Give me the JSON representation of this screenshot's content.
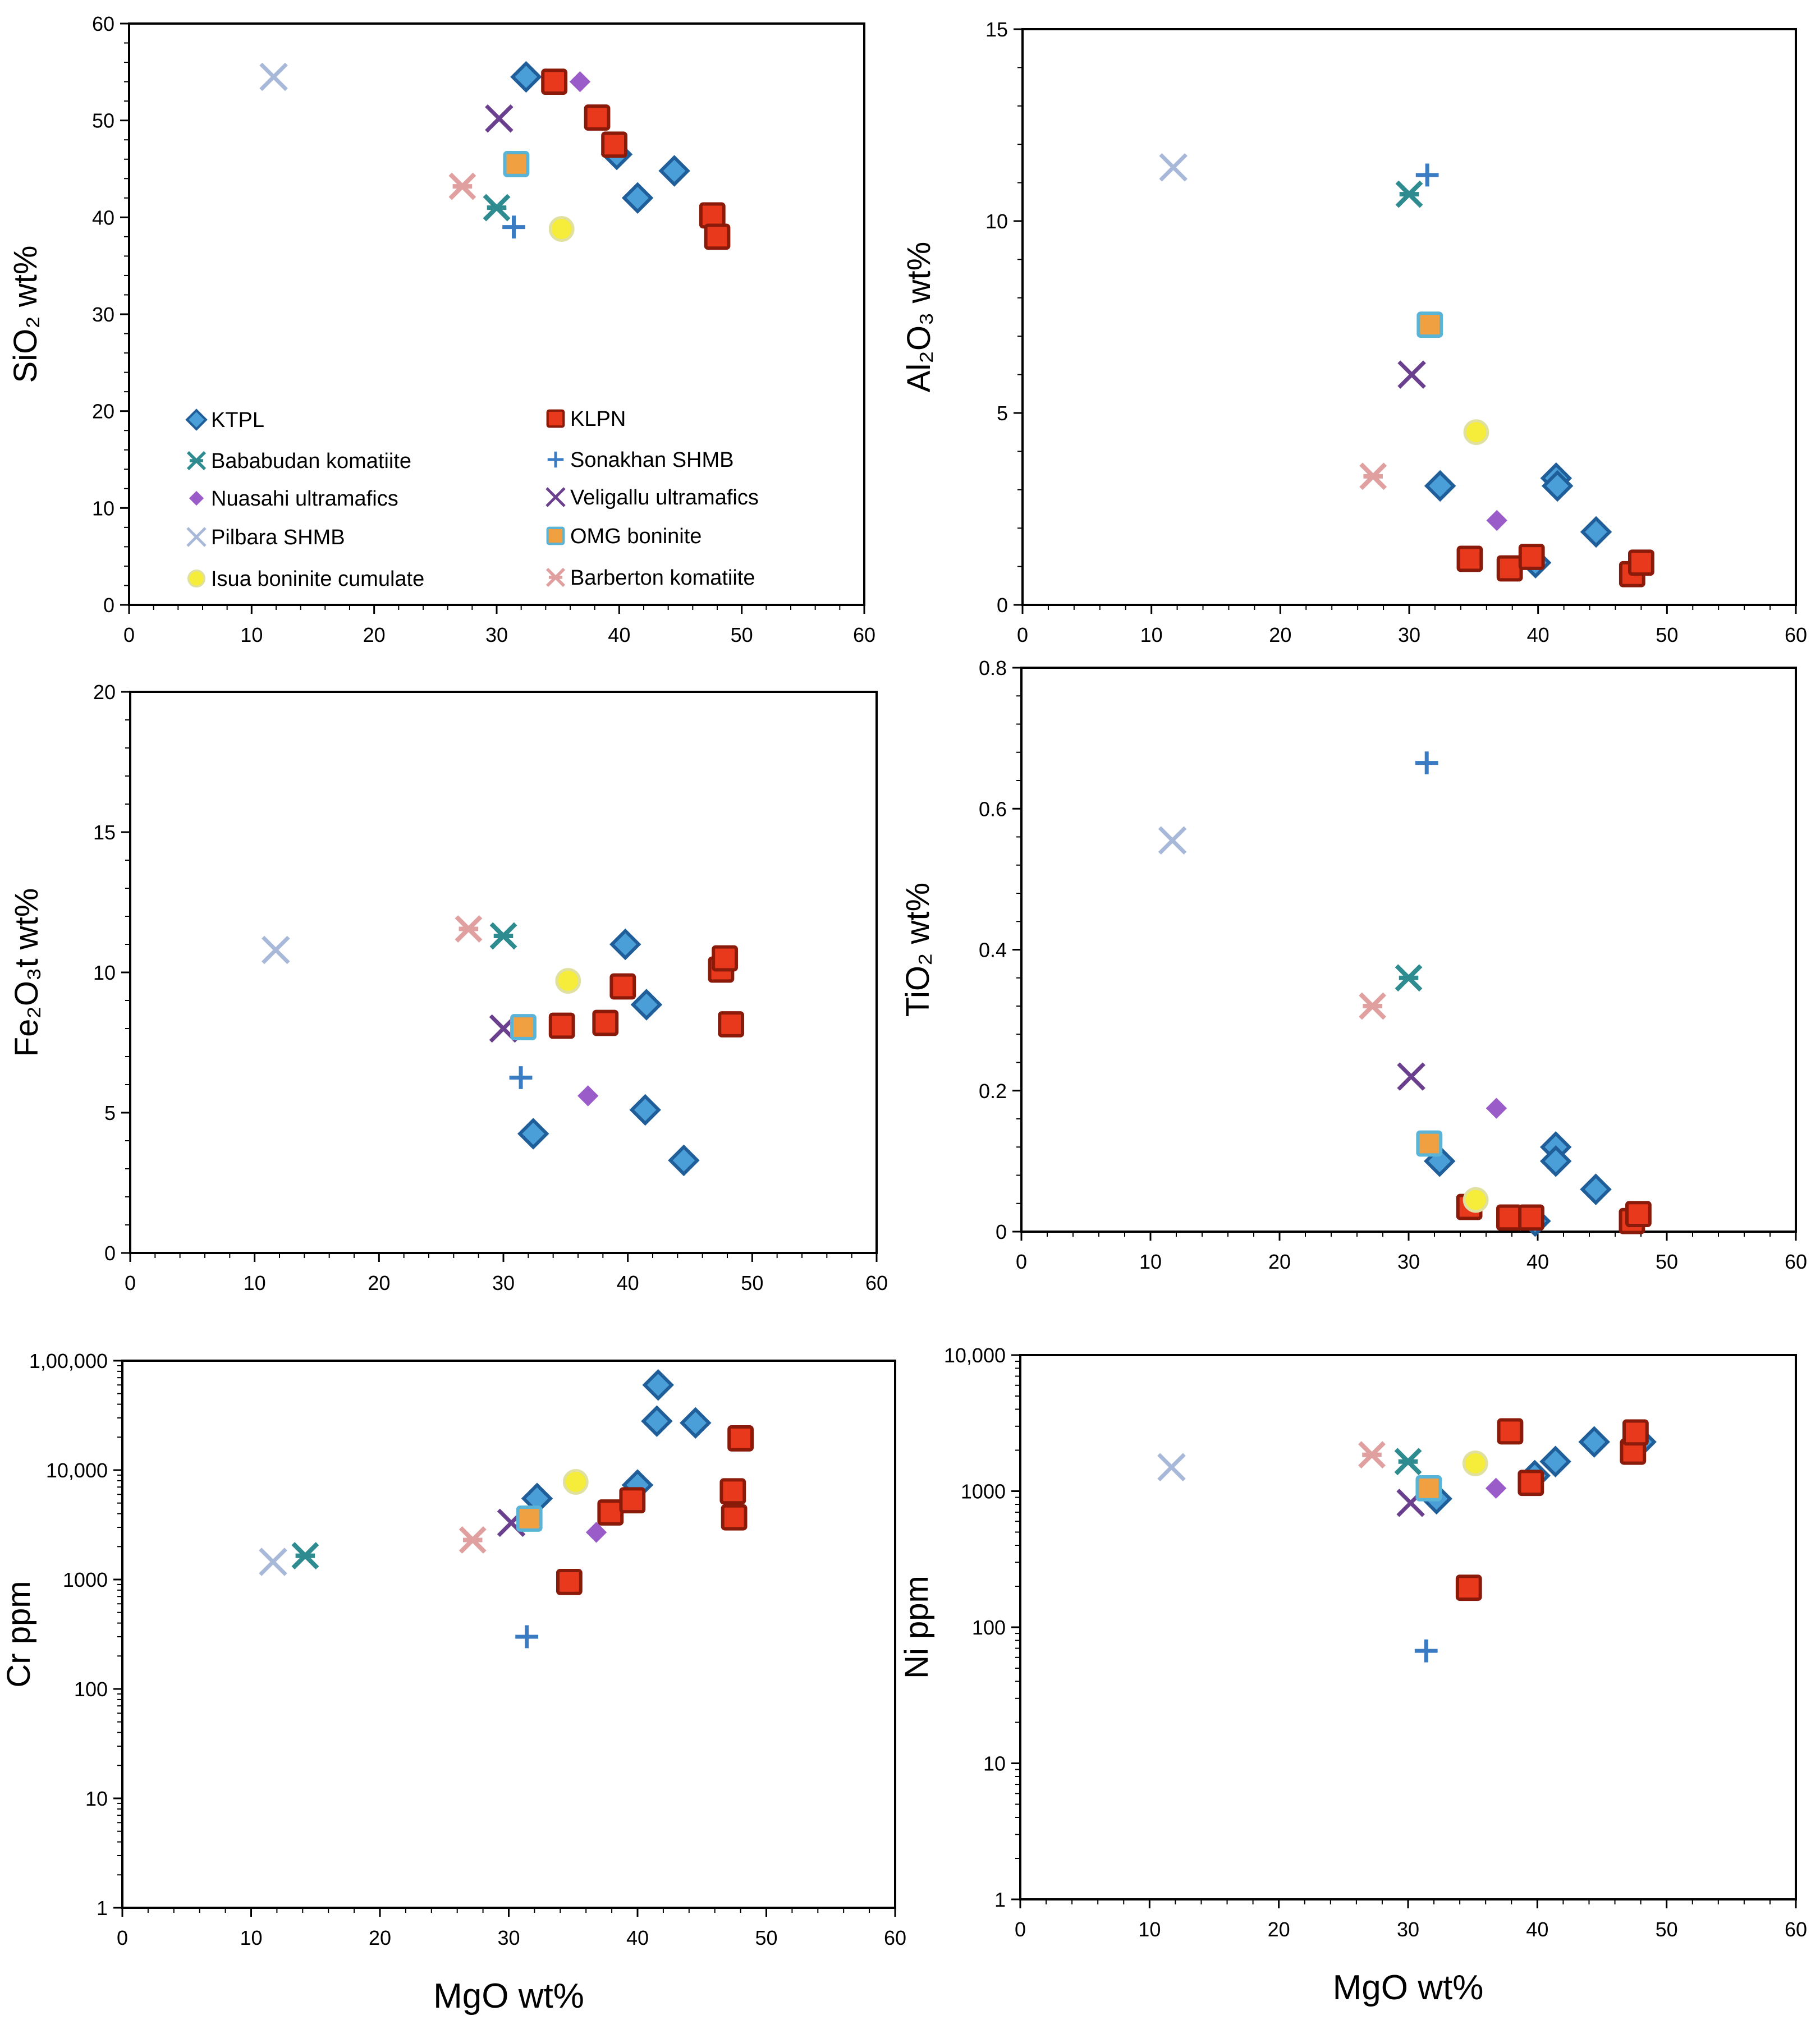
{
  "series_styles": {
    "KTPL": {
      "shape": "diamond",
      "color": "#4a9fd8",
      "stroke": "#1f5e99"
    },
    "KLPN": {
      "shape": "square",
      "color": "#e8391c",
      "stroke": "#8a1a0a"
    },
    "Bababudan komatiite": {
      "shape": "starx",
      "color": "#2e8b8f"
    },
    "Sonakhan SHMB": {
      "shape": "plus",
      "color": "#3a7cc4"
    },
    "Nuasahi ultramafics": {
      "shape": "smalldiamond",
      "color": "#9a5cc8"
    },
    "Veligallu ultramafics": {
      "shape": "x",
      "color": "#6a3f8e"
    },
    "Pilbara SHMB": {
      "shape": "x",
      "color": "#a8b8d8"
    },
    "OMG boninite": {
      "shape": "square",
      "color": "#f0a040",
      "stroke": "#5ab4d8"
    },
    "Isua boninite cumulate": {
      "shape": "circle",
      "color": "#f6ec3a",
      "stroke": "#e0e0a0"
    },
    "Barberton komatiite": {
      "shape": "starx",
      "color": "#e0a0a0"
    }
  },
  "chart_data": [
    {
      "id": "sio2",
      "type": "scatter",
      "xlabel": "",
      "ylabel": "SiO₂ wt%",
      "xlim": [
        0,
        60
      ],
      "ylim": [
        0,
        60
      ],
      "xticks": [
        "0",
        "10",
        "20",
        "30",
        "40",
        "50",
        "60"
      ],
      "yticks": [
        "0",
        "10",
        "20",
        "30",
        "40",
        "50",
        "60"
      ],
      "legend": {
        "placement": "bottom-left",
        "entries": [
          "KTPL",
          "KLPN",
          "Bababudan komatiite",
          "Sonakhan SHMB",
          "Nuasahi ultramafics",
          "Veligallu ultramafics",
          "Pilbara SHMB",
          "OMG boninite",
          "Isua boninite cumulate",
          "Barberton komatiite"
        ]
      },
      "series": [
        {
          "name": "KTPL",
          "x": [
            32.4,
            39.8,
            41.5,
            44.5
          ],
          "y": [
            54.5,
            46.5,
            42.0,
            44.8
          ]
        },
        {
          "name": "KLPN",
          "x": [
            34.7,
            38.2,
            39.6,
            47.6,
            48.0
          ],
          "y": [
            54.0,
            50.3,
            47.5,
            40.2,
            38.0
          ]
        },
        {
          "name": "Bababudan komatiite",
          "x": [
            30.0
          ],
          "y": [
            41.0
          ]
        },
        {
          "name": "Sonakhan SHMB",
          "x": [
            31.4
          ],
          "y": [
            39.0
          ]
        },
        {
          "name": "Nuasahi ultramafics",
          "x": [
            36.8
          ],
          "y": [
            54.0
          ]
        },
        {
          "name": "Veligallu ultramafics",
          "x": [
            30.2
          ],
          "y": [
            50.2
          ]
        },
        {
          "name": "Pilbara SHMB",
          "x": [
            11.8
          ],
          "y": [
            54.5
          ]
        },
        {
          "name": "OMG boninite",
          "x": [
            31.6
          ],
          "y": [
            45.5
          ]
        },
        {
          "name": "Isua boninite cumulate",
          "x": [
            35.3
          ],
          "y": [
            38.8
          ]
        },
        {
          "name": "Barberton komatiite",
          "x": [
            27.2
          ],
          "y": [
            43.2
          ]
        }
      ]
    },
    {
      "id": "al2o3",
      "type": "scatter",
      "xlabel": "",
      "ylabel": "Al₂O₃ wt%",
      "xlim": [
        0,
        60
      ],
      "ylim": [
        0,
        15
      ],
      "xticks": [
        "0",
        "10",
        "20",
        "30",
        "40",
        "50",
        "60"
      ],
      "yticks": [
        "0",
        "5",
        "10",
        "15"
      ],
      "series": [
        {
          "name": "KTPL",
          "x": [
            32.4,
            39.8,
            41.4,
            41.5,
            44.5
          ],
          "y": [
            3.1,
            1.1,
            3.3,
            3.1,
            1.9
          ]
        },
        {
          "name": "KLPN",
          "x": [
            34.7,
            37.8,
            39.5,
            47.3,
            48.0
          ],
          "y": [
            1.2,
            0.95,
            1.25,
            0.8,
            1.1
          ]
        },
        {
          "name": "Bababudan komatiite",
          "x": [
            30.0
          ],
          "y": [
            10.7
          ]
        },
        {
          "name": "Sonakhan SHMB",
          "x": [
            31.4
          ],
          "y": [
            11.2
          ]
        },
        {
          "name": "Nuasahi ultramafics",
          "x": [
            36.8
          ],
          "y": [
            2.2
          ]
        },
        {
          "name": "Veligallu ultramafics",
          "x": [
            30.2
          ],
          "y": [
            6.0
          ]
        },
        {
          "name": "Pilbara SHMB",
          "x": [
            11.7
          ],
          "y": [
            11.4
          ]
        },
        {
          "name": "OMG boninite",
          "x": [
            31.6
          ],
          "y": [
            7.3
          ]
        },
        {
          "name": "Isua boninite cumulate",
          "x": [
            35.2
          ],
          "y": [
            4.5
          ]
        },
        {
          "name": "Barberton komatiite",
          "x": [
            27.2
          ],
          "y": [
            3.35
          ]
        }
      ]
    },
    {
      "id": "fe2o3",
      "type": "scatter",
      "xlabel": "",
      "ylabel": "Fe₂O₃t wt%",
      "xlim": [
        0,
        60
      ],
      "ylim": [
        0,
        20
      ],
      "xticks": [
        "0",
        "10",
        "20",
        "30",
        "40",
        "50",
        "60"
      ],
      "yticks": [
        "0",
        "5",
        "10",
        "15",
        "20"
      ],
      "series": [
        {
          "name": "KTPL",
          "x": [
            32.4,
            39.8,
            41.5,
            41.4,
            44.5
          ],
          "y": [
            4.25,
            11.0,
            8.85,
            5.1,
            3.3
          ]
        },
        {
          "name": "KLPN",
          "x": [
            34.7,
            38.2,
            39.6,
            47.5,
            47.8,
            48.3
          ],
          "y": [
            8.1,
            8.2,
            9.5,
            10.1,
            10.5,
            8.15
          ]
        },
        {
          "name": "Bababudan komatiite",
          "x": [
            30.0
          ],
          "y": [
            11.3
          ]
        },
        {
          "name": "Sonakhan SHMB",
          "x": [
            31.4
          ],
          "y": [
            6.25
          ]
        },
        {
          "name": "Nuasahi ultramafics",
          "x": [
            36.8
          ],
          "y": [
            5.6
          ]
        },
        {
          "name": "Veligallu ultramafics",
          "x": [
            30.0
          ],
          "y": [
            8.0
          ]
        },
        {
          "name": "Pilbara SHMB",
          "x": [
            11.7
          ],
          "y": [
            10.8
          ]
        },
        {
          "name": "OMG boninite",
          "x": [
            31.6
          ],
          "y": [
            8.05
          ]
        },
        {
          "name": "Isua boninite cumulate",
          "x": [
            35.2
          ],
          "y": [
            9.7
          ]
        },
        {
          "name": "Barberton komatiite",
          "x": [
            27.2
          ],
          "y": [
            11.55
          ]
        }
      ]
    },
    {
      "id": "tio2",
      "type": "scatter",
      "xlabel": "",
      "ylabel": "TiO₂ wt%",
      "xlim": [
        0,
        60
      ],
      "ylim": [
        0,
        0.8
      ],
      "xticks": [
        "0",
        "10",
        "20",
        "30",
        "40",
        "50",
        "60"
      ],
      "yticks": [
        "0",
        "0.2",
        "0.4",
        "0.6",
        "0.8"
      ],
      "series": [
        {
          "name": "KTPL",
          "x": [
            32.4,
            39.8,
            41.4,
            41.4,
            44.5
          ],
          "y": [
            0.1,
            0.015,
            0.12,
            0.1,
            0.06
          ]
        },
        {
          "name": "KLPN",
          "x": [
            34.7,
            37.8,
            39.5,
            47.3,
            47.8
          ],
          "y": [
            0.035,
            0.02,
            0.02,
            0.015,
            0.025
          ]
        },
        {
          "name": "Bababudan komatiite",
          "x": [
            30.0
          ],
          "y": [
            0.36
          ]
        },
        {
          "name": "Sonakhan SHMB",
          "x": [
            31.4
          ],
          "y": [
            0.665
          ]
        },
        {
          "name": "Nuasahi ultramafics",
          "x": [
            36.8
          ],
          "y": [
            0.175
          ]
        },
        {
          "name": "Veligallu ultramafics",
          "x": [
            30.2
          ],
          "y": [
            0.22
          ]
        },
        {
          "name": "Pilbara SHMB",
          "x": [
            11.7
          ],
          "y": [
            0.555
          ]
        },
        {
          "name": "OMG boninite",
          "x": [
            31.6
          ],
          "y": [
            0.125
          ]
        },
        {
          "name": "Isua boninite cumulate",
          "x": [
            35.2
          ],
          "y": [
            0.045
          ]
        },
        {
          "name": "Barberton komatiite",
          "x": [
            27.2
          ],
          "y": [
            0.32
          ]
        }
      ]
    },
    {
      "id": "cr",
      "type": "scatter",
      "yscale": "log",
      "xlabel": "MgO wt%",
      "ylabel": "Cr ppm",
      "xlim": [
        0,
        60
      ],
      "ylim": [
        1,
        100000
      ],
      "xticks": [
        "0",
        "10",
        "20",
        "30",
        "40",
        "50",
        "60"
      ],
      "yticks": [
        "1",
        "10",
        "100",
        "1000",
        "10,000",
        "1,00,000"
      ],
      "series": [
        {
          "name": "KTPL",
          "x": [
            32.2,
            40.0,
            41.5,
            41.6,
            44.5
          ],
          "y": [
            5500,
            7300,
            28000,
            60000,
            27000
          ]
        },
        {
          "name": "KLPN",
          "x": [
            34.7,
            37.9,
            39.6,
            47.4,
            47.5,
            48.0
          ],
          "y": [
            950,
            4100,
            5300,
            6400,
            3700,
            19500
          ]
        },
        {
          "name": "Bababudan komatiite",
          "x": [
            14.2
          ],
          "y": [
            1650
          ]
        },
        {
          "name": "Sonakhan SHMB",
          "x": [
            31.4
          ],
          "y": [
            300
          ]
        },
        {
          "name": "Nuasahi ultramafics",
          "x": [
            36.8
          ],
          "y": [
            2700
          ]
        },
        {
          "name": "Veligallu ultramafics",
          "x": [
            30.2
          ],
          "y": [
            3300
          ]
        },
        {
          "name": "Pilbara SHMB",
          "x": [
            11.7
          ],
          "y": [
            1450
          ]
        },
        {
          "name": "OMG boninite",
          "x": [
            31.6
          ],
          "y": [
            3600
          ]
        },
        {
          "name": "Isua boninite cumulate",
          "x": [
            35.2
          ],
          "y": [
            7800
          ]
        },
        {
          "name": "Barberton komatiite",
          "x": [
            27.2
          ],
          "y": [
            2300
          ]
        }
      ]
    },
    {
      "id": "ni",
      "type": "scatter",
      "yscale": "log",
      "xlabel": "MgO wt%",
      "ylabel": "Ni ppm",
      "xlim": [
        0,
        60
      ],
      "ylim": [
        1,
        10000
      ],
      "xticks": [
        "0",
        "10",
        "20",
        "30",
        "40",
        "50",
        "60"
      ],
      "yticks": [
        "1",
        "10",
        "100",
        "1000",
        "10,000"
      ],
      "series": [
        {
          "name": "KTPL",
          "x": [
            32.2,
            39.8,
            41.4,
            44.4,
            48.0
          ],
          "y": [
            880,
            1300,
            1650,
            2300,
            2300
          ]
        },
        {
          "name": "KLPN",
          "x": [
            34.7,
            37.9,
            39.5,
            47.4,
            47.6
          ],
          "y": [
            195,
            2750,
            1150,
            1950,
            2700
          ]
        },
        {
          "name": "Bababudan komatiite",
          "x": [
            30.0
          ],
          "y": [
            1650
          ]
        },
        {
          "name": "Sonakhan SHMB",
          "x": [
            31.4
          ],
          "y": [
            67
          ]
        },
        {
          "name": "Nuasahi ultramafics",
          "x": [
            36.8
          ],
          "y": [
            1050
          ]
        },
        {
          "name": "Veligallu ultramafics",
          "x": [
            30.2
          ],
          "y": [
            820
          ]
        },
        {
          "name": "Pilbara SHMB",
          "x": [
            11.7
          ],
          "y": [
            1500
          ]
        },
        {
          "name": "OMG boninite",
          "x": [
            31.6
          ],
          "y": [
            1050
          ]
        },
        {
          "name": "Isua boninite cumulate",
          "x": [
            35.2
          ],
          "y": [
            1600
          ]
        },
        {
          "name": "Barberton komatiite",
          "x": [
            27.2
          ],
          "y": [
            1850
          ]
        }
      ]
    }
  ]
}
